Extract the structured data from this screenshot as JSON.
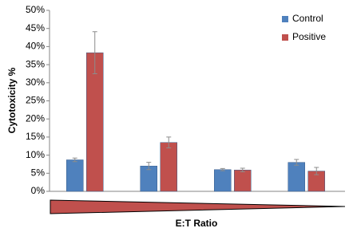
{
  "chart_data": {
    "type": "bar",
    "y_label": "Cytotoxicity %",
    "x_label": "E:T Ratio",
    "categories": [
      null,
      null,
      null,
      null
    ],
    "series": [
      {
        "name": "Control",
        "color": "#4f81bd",
        "values": [
          8.7,
          7.0,
          6.0,
          8.0
        ],
        "errors": [
          0.5,
          1.0,
          0.3,
          0.8
        ]
      },
      {
        "name": "Positive",
        "color": "#c0504d",
        "values": [
          38.3,
          13.5,
          5.9,
          5.6
        ],
        "errors": [
          5.8,
          1.5,
          0.5,
          1.0
        ]
      }
    ],
    "ylim": [
      0,
      50
    ],
    "yticks": [
      {
        "value": 0,
        "label": "0%"
      },
      {
        "value": 5,
        "label": "5%"
      },
      {
        "value": 10,
        "label": "10%"
      },
      {
        "value": 15,
        "label": "15%"
      },
      {
        "value": 20,
        "label": "20%"
      },
      {
        "value": 25,
        "label": "25%"
      },
      {
        "value": 30,
        "label": "30%"
      },
      {
        "value": 35,
        "label": "35%"
      },
      {
        "value": 40,
        "label": "40%"
      },
      {
        "value": 45,
        "label": "45%"
      },
      {
        "value": 50,
        "label": "50%"
      }
    ],
    "grid": false,
    "legend": "top-right"
  }
}
